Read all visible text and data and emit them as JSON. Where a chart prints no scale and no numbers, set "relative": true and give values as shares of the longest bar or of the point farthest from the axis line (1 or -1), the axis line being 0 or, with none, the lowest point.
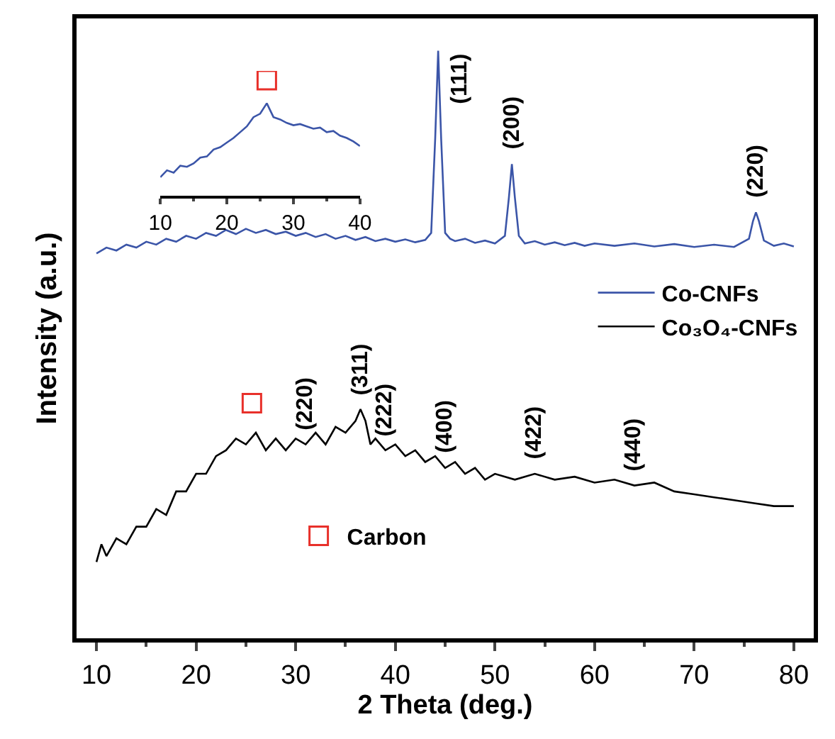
{
  "chart_data": [
    {
      "type": "line",
      "xlabel": "2 Theta (deg.)",
      "ylabel": "Intensity (a.u.)",
      "relative": true,
      "xlim": [
        8,
        82
      ],
      "xticks": [
        10,
        20,
        30,
        40,
        50,
        60,
        70,
        80
      ],
      "tick_labels": "x",
      "legend": "right",
      "series": [
        {
          "name": "Co-CNFs",
          "color": "#3b55a8",
          "x": [
            10,
            11,
            12,
            13,
            14,
            15,
            16,
            17,
            18,
            19,
            20,
            21,
            22,
            23,
            24,
            25,
            26,
            27,
            28,
            29,
            30,
            31,
            32,
            33,
            34,
            35,
            36,
            37,
            38,
            39,
            40,
            41,
            42,
            43,
            43.6,
            44.0,
            44.3,
            44.6,
            45.0,
            45.5,
            46,
            47,
            48,
            49,
            50,
            51.0,
            51.4,
            51.7,
            52.0,
            52.4,
            53,
            54,
            55,
            56,
            57,
            58,
            59,
            60,
            62,
            64,
            66,
            68,
            70,
            72,
            74,
            75.5,
            75.9,
            76.2,
            76.5,
            77,
            78,
            79,
            80
          ],
          "values": [
            0.655,
            0.665,
            0.66,
            0.67,
            0.665,
            0.675,
            0.67,
            0.68,
            0.675,
            0.685,
            0.68,
            0.69,
            0.685,
            0.695,
            0.688,
            0.697,
            0.69,
            0.695,
            0.688,
            0.692,
            0.685,
            0.69,
            0.683,
            0.688,
            0.68,
            0.685,
            0.678,
            0.683,
            0.676,
            0.68,
            0.675,
            0.679,
            0.674,
            0.678,
            0.69,
            0.85,
            1.0,
            0.85,
            0.69,
            0.68,
            0.676,
            0.68,
            0.673,
            0.677,
            0.672,
            0.685,
            0.75,
            0.807,
            0.75,
            0.685,
            0.672,
            0.676,
            0.67,
            0.674,
            0.669,
            0.673,
            0.668,
            0.672,
            0.668,
            0.672,
            0.667,
            0.671,
            0.666,
            0.67,
            0.666,
            0.68,
            0.71,
            0.725,
            0.71,
            0.677,
            0.668,
            0.672,
            0.667
          ]
        },
        {
          "name": "Co₃O₄-CNFs",
          "color": "#000000",
          "x": [
            10,
            10.5,
            11,
            12,
            13,
            14,
            15,
            16,
            17,
            18,
            19,
            20,
            21,
            22,
            23,
            24,
            25,
            26,
            27,
            28,
            29,
            30,
            31,
            32,
            33,
            34,
            35,
            36,
            36.5,
            37,
            37.5,
            38,
            39,
            40,
            41,
            42,
            43,
            44,
            45,
            46,
            47,
            48,
            49,
            50,
            52,
            54,
            56,
            58,
            60,
            62,
            64,
            66,
            68,
            70,
            72,
            74,
            76,
            78,
            80
          ],
          "values": [
            0.13,
            0.16,
            0.14,
            0.17,
            0.16,
            0.19,
            0.19,
            0.22,
            0.21,
            0.25,
            0.25,
            0.28,
            0.28,
            0.31,
            0.32,
            0.34,
            0.33,
            0.35,
            0.32,
            0.34,
            0.32,
            0.34,
            0.33,
            0.35,
            0.33,
            0.36,
            0.35,
            0.37,
            0.39,
            0.37,
            0.33,
            0.34,
            0.32,
            0.33,
            0.31,
            0.32,
            0.3,
            0.31,
            0.29,
            0.3,
            0.28,
            0.29,
            0.27,
            0.28,
            0.27,
            0.28,
            0.27,
            0.275,
            0.265,
            0.27,
            0.26,
            0.265,
            0.25,
            0.245,
            0.24,
            0.235,
            0.23,
            0.225,
            0.225
          ]
        },
        {
          "name": "Carbon",
          "type": "scatter",
          "marker": "square",
          "color": "#e8302a",
          "x": [
            25.6
          ],
          "values": [
            0.4
          ]
        }
      ],
      "annotations": [
        {
          "text": "(111)",
          "x": 44.3,
          "y": 1.0
        },
        {
          "text": "(200)",
          "x": 51.7,
          "y": 0.807
        },
        {
          "text": "(220)",
          "x": 76.2,
          "y": 0.725
        },
        {
          "text": "(220)",
          "x": 31,
          "y": 0.33
        },
        {
          "text": "(311)",
          "x": 36.5,
          "y": 0.39
        },
        {
          "text": "(222)",
          "x": 39,
          "y": 0.32
        },
        {
          "text": "(400)",
          "x": 45,
          "y": 0.29
        },
        {
          "text": "(422)",
          "x": 54,
          "y": 0.28
        },
        {
          "text": "(440)",
          "x": 64,
          "y": 0.26
        }
      ]
    },
    {
      "type": "line",
      "relative": true,
      "xlim": [
        10,
        40
      ],
      "xticks": [
        10,
        20,
        30,
        40
      ],
      "tick_labels": "x",
      "series": [
        {
          "color": "#3b55a8",
          "x": [
            10,
            11,
            12,
            13,
            14,
            15,
            16,
            17,
            18,
            19,
            20,
            21,
            22,
            23,
            24,
            25,
            26,
            27,
            28,
            29,
            30,
            31,
            32,
            33,
            34,
            35,
            36,
            37,
            38,
            39,
            40
          ],
          "values": [
            0.16,
            0.22,
            0.2,
            0.26,
            0.25,
            0.28,
            0.33,
            0.34,
            0.4,
            0.42,
            0.46,
            0.5,
            0.55,
            0.6,
            0.68,
            0.71,
            0.8,
            0.68,
            0.66,
            0.63,
            0.61,
            0.62,
            0.6,
            0.58,
            0.59,
            0.55,
            0.56,
            0.52,
            0.5,
            0.47,
            0.43
          ]
        },
        {
          "type": "scatter",
          "marker": "square",
          "color": "#e8302a",
          "x": [
            26
          ],
          "values": [
            1.0
          ]
        }
      ]
    }
  ]
}
